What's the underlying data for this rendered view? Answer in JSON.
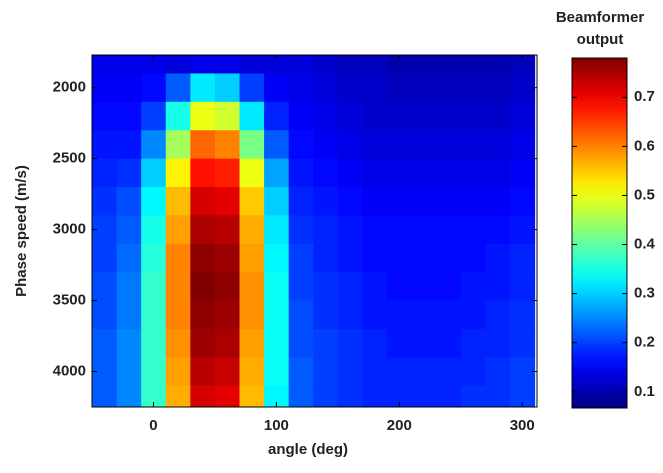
{
  "chart_data": {
    "type": "heatmap",
    "xlabel": "angle (deg)",
    "ylabel": "Phase speed (m/s)",
    "colorbar_label": [
      "Beamformer",
      "output"
    ],
    "colormap": "jet",
    "clim": [
      0.067,
      0.78
    ],
    "cticks": [
      0.1,
      0.2,
      0.3,
      0.4,
      0.5,
      0.6,
      0.7
    ],
    "xlim": [
      -50,
      312
    ],
    "xticks": [
      0,
      100,
      200,
      300
    ],
    "ylim": [
      1770,
      4250
    ],
    "yticks": [
      2000,
      2500,
      3000,
      3500,
      4000
    ],
    "y_reversed": true,
    "x": [
      -40,
      -20,
      0,
      20,
      40,
      60,
      80,
      100,
      120,
      140,
      160,
      180,
      200,
      220,
      240,
      260,
      280,
      300
    ],
    "y": [
      1800,
      2000,
      2200,
      2400,
      2600,
      2800,
      3000,
      3200,
      3400,
      3600,
      3800,
      4000,
      4200
    ],
    "values": [
      [
        0.14,
        0.14,
        0.14,
        0.13,
        0.14,
        0.14,
        0.13,
        0.13,
        0.13,
        0.12,
        0.11,
        0.11,
        0.1,
        0.1,
        0.1,
        0.1,
        0.1,
        0.11
      ],
      [
        0.15,
        0.15,
        0.16,
        0.22,
        0.32,
        0.3,
        0.2,
        0.15,
        0.14,
        0.13,
        0.12,
        0.12,
        0.11,
        0.11,
        0.11,
        0.11,
        0.11,
        0.12
      ],
      [
        0.16,
        0.16,
        0.2,
        0.35,
        0.5,
        0.48,
        0.32,
        0.18,
        0.15,
        0.14,
        0.13,
        0.12,
        0.12,
        0.12,
        0.12,
        0.12,
        0.12,
        0.13
      ],
      [
        0.17,
        0.17,
        0.25,
        0.45,
        0.62,
        0.6,
        0.42,
        0.22,
        0.16,
        0.15,
        0.14,
        0.13,
        0.13,
        0.13,
        0.13,
        0.13,
        0.13,
        0.14
      ],
      [
        0.18,
        0.19,
        0.3,
        0.52,
        0.68,
        0.67,
        0.5,
        0.27,
        0.17,
        0.16,
        0.15,
        0.14,
        0.14,
        0.14,
        0.14,
        0.14,
        0.14,
        0.15
      ],
      [
        0.19,
        0.21,
        0.33,
        0.56,
        0.72,
        0.71,
        0.55,
        0.3,
        0.18,
        0.17,
        0.16,
        0.15,
        0.15,
        0.15,
        0.15,
        0.15,
        0.15,
        0.16
      ],
      [
        0.2,
        0.22,
        0.35,
        0.58,
        0.75,
        0.74,
        0.57,
        0.32,
        0.19,
        0.18,
        0.17,
        0.16,
        0.16,
        0.16,
        0.16,
        0.16,
        0.16,
        0.17
      ],
      [
        0.2,
        0.23,
        0.36,
        0.6,
        0.77,
        0.76,
        0.58,
        0.33,
        0.2,
        0.18,
        0.17,
        0.16,
        0.16,
        0.16,
        0.16,
        0.16,
        0.17,
        0.18
      ],
      [
        0.21,
        0.24,
        0.37,
        0.6,
        0.78,
        0.77,
        0.59,
        0.34,
        0.2,
        0.19,
        0.18,
        0.17,
        0.16,
        0.16,
        0.16,
        0.17,
        0.17,
        0.18
      ],
      [
        0.21,
        0.24,
        0.37,
        0.6,
        0.77,
        0.76,
        0.59,
        0.34,
        0.21,
        0.19,
        0.18,
        0.17,
        0.17,
        0.17,
        0.17,
        0.17,
        0.18,
        0.19
      ],
      [
        0.22,
        0.25,
        0.37,
        0.59,
        0.76,
        0.75,
        0.58,
        0.34,
        0.21,
        0.2,
        0.19,
        0.18,
        0.17,
        0.17,
        0.17,
        0.18,
        0.18,
        0.19
      ],
      [
        0.22,
        0.25,
        0.37,
        0.58,
        0.74,
        0.73,
        0.57,
        0.34,
        0.22,
        0.2,
        0.19,
        0.18,
        0.18,
        0.18,
        0.18,
        0.18,
        0.19,
        0.2
      ],
      [
        0.22,
        0.25,
        0.37,
        0.57,
        0.72,
        0.71,
        0.56,
        0.33,
        0.22,
        0.2,
        0.19,
        0.18,
        0.18,
        0.18,
        0.18,
        0.19,
        0.19,
        0.2
      ]
    ]
  }
}
